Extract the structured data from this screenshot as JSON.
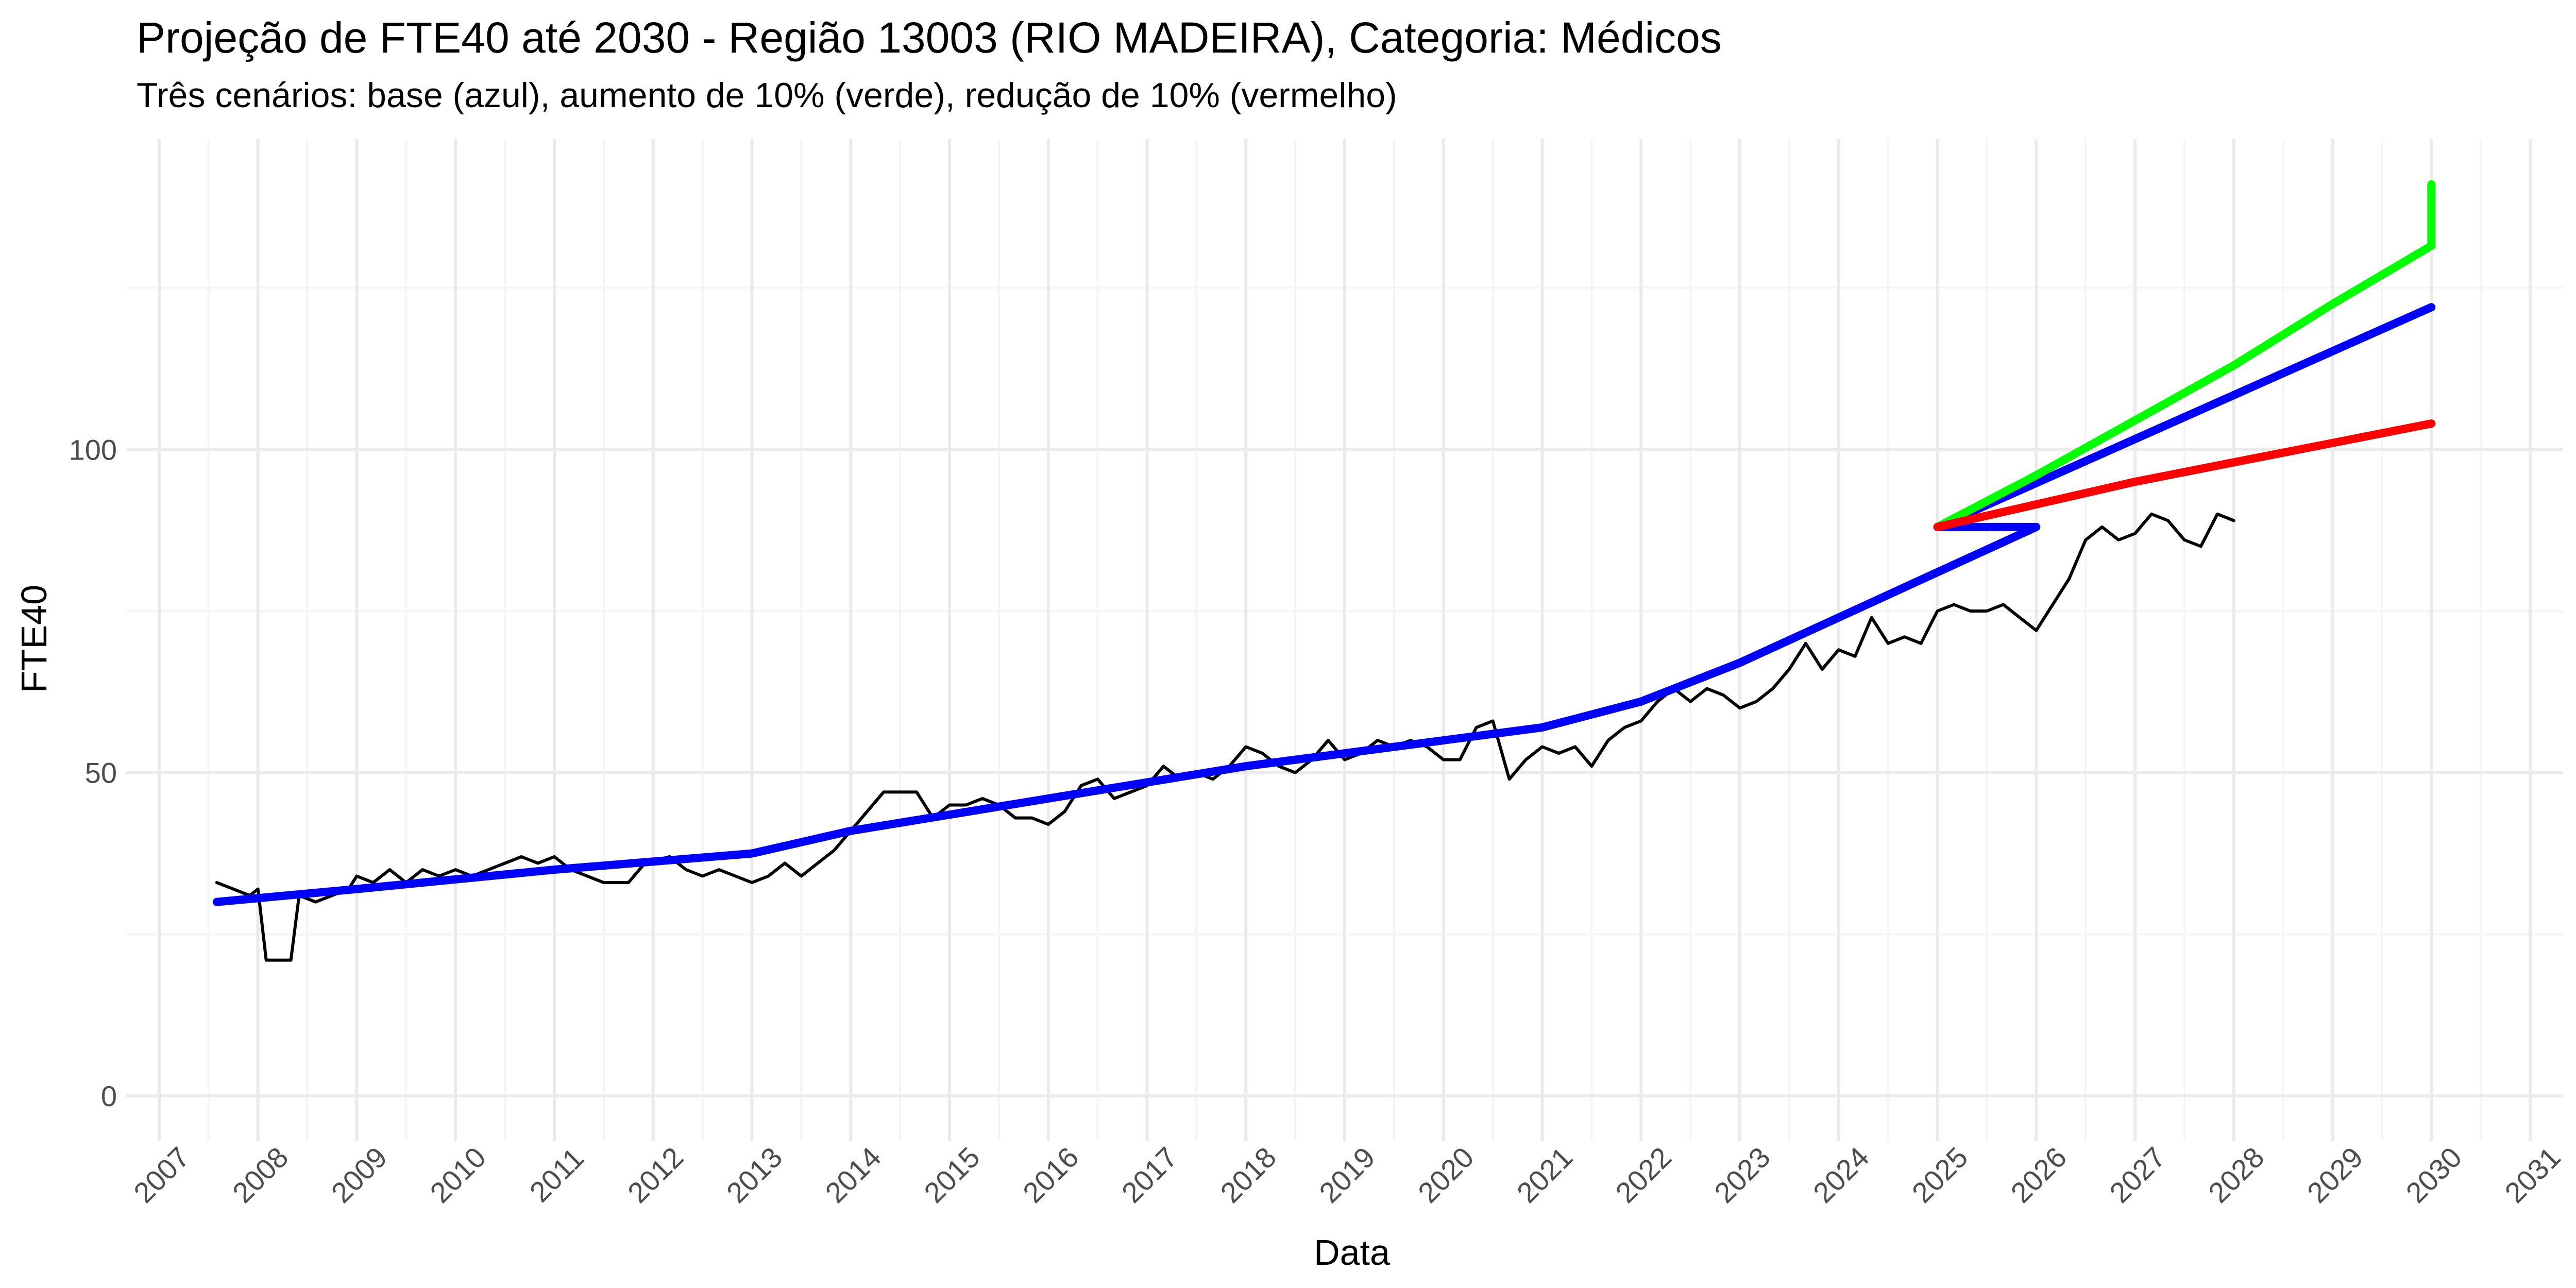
{
  "chart_data": {
    "type": "line",
    "title": "Projeção de FTE40 até 2030 - Região 13003 (RIO MADEIRA), Categoria: Médicos",
    "subtitle": "Três cenários: base (azul), aumento de 10% (verde), redução de 10% (vermelho)",
    "xlabel": "Data",
    "ylabel": "FTE40",
    "x_type": "date",
    "xlim": [
      "2006-09-01",
      "2031-05-01"
    ],
    "ylim": [
      -7,
      148
    ],
    "y_ticks": [
      0,
      50,
      100
    ],
    "x_tick_labels": [
      "2007",
      "2008",
      "2009",
      "2010",
      "2011",
      "2012",
      "2013",
      "2014",
      "2015",
      "2016",
      "2017",
      "2018",
      "2019",
      "2020",
      "2021",
      "2022",
      "2023",
      "2024",
      "2025",
      "2026",
      "2027",
      "2028",
      "2029",
      "2030",
      "2031"
    ],
    "grid": true,
    "colors": {
      "observed": "#000000",
      "base": "#0000ff",
      "increase": "#00ff00",
      "decrease": "#ff0000",
      "grid_major": "#ebebeb",
      "grid_minor": "#f5f5f5"
    },
    "series": [
      {
        "key": "observed",
        "points": [
          [
            "2007-08",
            33
          ],
          [
            "2007-10",
            32
          ],
          [
            "2007-12",
            31
          ],
          [
            "2008-01",
            32
          ],
          [
            "2008-02",
            21
          ],
          [
            "2008-05",
            21
          ],
          [
            "2008-06",
            31
          ],
          [
            "2008-08",
            30
          ],
          [
            "2008-10",
            31
          ],
          [
            "2008-12",
            32
          ],
          [
            "2009-01",
            34
          ],
          [
            "2009-03",
            33
          ],
          [
            "2009-05",
            35
          ],
          [
            "2009-07",
            33
          ],
          [
            "2009-09",
            35
          ],
          [
            "2009-11",
            34
          ],
          [
            "2010-01",
            35
          ],
          [
            "2010-03",
            34
          ],
          [
            "2010-05",
            35
          ],
          [
            "2010-07",
            36
          ],
          [
            "2010-09",
            37
          ],
          [
            "2010-11",
            36
          ],
          [
            "2011-01",
            37
          ],
          [
            "2011-03",
            35
          ],
          [
            "2011-05",
            34
          ],
          [
            "2011-07",
            33
          ],
          [
            "2011-10",
            33
          ],
          [
            "2011-12",
            36
          ],
          [
            "2012-03",
            37
          ],
          [
            "2012-05",
            35
          ],
          [
            "2012-07",
            34
          ],
          [
            "2012-09",
            35
          ],
          [
            "2012-11",
            34
          ],
          [
            "2013-01",
            33
          ],
          [
            "2013-03",
            34
          ],
          [
            "2013-05",
            36
          ],
          [
            "2013-07",
            34
          ],
          [
            "2013-09",
            36
          ],
          [
            "2013-11",
            38
          ],
          [
            "2014-01",
            41
          ],
          [
            "2014-03",
            44
          ],
          [
            "2014-05",
            47
          ],
          [
            "2014-07",
            47
          ],
          [
            "2014-09",
            47
          ],
          [
            "2014-11",
            43
          ],
          [
            "2015-01",
            45
          ],
          [
            "2015-03",
            45
          ],
          [
            "2015-05",
            46
          ],
          [
            "2015-07",
            45
          ],
          [
            "2015-09",
            43
          ],
          [
            "2015-11",
            43
          ],
          [
            "2016-01",
            42
          ],
          [
            "2016-03",
            44
          ],
          [
            "2016-05",
            48
          ],
          [
            "2016-07",
            49
          ],
          [
            "2016-09",
            46
          ],
          [
            "2016-11",
            47
          ],
          [
            "2017-01",
            48
          ],
          [
            "2017-03",
            51
          ],
          [
            "2017-05",
            49
          ],
          [
            "2017-07",
            50
          ],
          [
            "2017-09",
            49
          ],
          [
            "2017-11",
            51
          ],
          [
            "2018-01",
            54
          ],
          [
            "2018-03",
            53
          ],
          [
            "2018-05",
            51
          ],
          [
            "2018-07",
            50
          ],
          [
            "2018-09",
            52
          ],
          [
            "2018-11",
            55
          ],
          [
            "2019-01",
            52
          ],
          [
            "2019-03",
            53
          ],
          [
            "2019-05",
            55
          ],
          [
            "2019-07",
            54
          ],
          [
            "2019-09",
            55
          ],
          [
            "2019-11",
            54
          ],
          [
            "2020-01",
            52
          ],
          [
            "2020-03",
            52
          ],
          [
            "2020-05",
            57
          ],
          [
            "2020-07",
            58
          ],
          [
            "2020-09",
            49
          ],
          [
            "2020-11",
            52
          ],
          [
            "2021-01",
            54
          ],
          [
            "2021-03",
            53
          ],
          [
            "2021-05",
            54
          ],
          [
            "2021-07",
            51
          ],
          [
            "2021-09",
            55
          ],
          [
            "2021-11",
            57
          ],
          [
            "2022-01",
            58
          ],
          [
            "2022-03",
            61
          ],
          [
            "2022-05",
            63
          ],
          [
            "2022-07",
            61
          ],
          [
            "2022-09",
            63
          ],
          [
            "2022-11",
            62
          ],
          [
            "2023-01",
            60
          ],
          [
            "2023-03",
            61
          ],
          [
            "2023-05",
            63
          ],
          [
            "2023-07",
            66
          ],
          [
            "2023-09",
            70
          ],
          [
            "2023-11",
            66
          ],
          [
            "2024-01",
            69
          ],
          [
            "2024-03",
            68
          ],
          [
            "2024-05",
            74
          ],
          [
            "2024-07",
            70
          ],
          [
            "2024-09",
            71
          ],
          [
            "2024-11",
            70
          ],
          [
            "2025-01",
            75
          ],
          [
            "2025-03",
            76
          ],
          [
            "2025-05",
            75
          ],
          [
            "2025-07",
            75
          ],
          [
            "2025-09",
            76
          ],
          [
            "2025-11",
            74
          ],
          [
            "2026-01",
            72
          ],
          [
            "2026-03",
            76
          ],
          [
            "2026-05",
            80
          ],
          [
            "2026-07",
            86
          ],
          [
            "2026-09",
            88
          ],
          [
            "2026-11",
            86
          ],
          [
            "2027-01",
            87
          ],
          [
            "2027-03",
            90
          ],
          [
            "2027-05",
            89
          ],
          [
            "2027-07",
            86
          ],
          [
            "2027-09",
            85
          ],
          [
            "2027-11",
            90
          ],
          [
            "2028-01",
            89
          ]
        ]
      },
      {
        "key": "base",
        "points": [
          [
            "2007-08",
            30
          ],
          [
            "2009-01",
            32
          ],
          [
            "2011-01",
            35
          ],
          [
            "2013-01",
            37.5
          ],
          [
            "2014-01",
            41
          ],
          [
            "2016-01",
            46
          ],
          [
            "2018-01",
            51
          ],
          [
            "2020-01",
            55
          ],
          [
            "2021-01",
            57
          ],
          [
            "2022-01",
            61
          ],
          [
            "2023-01",
            67
          ],
          [
            "2024-01",
            74
          ],
          [
            "2025-01",
            81
          ],
          [
            "2026-01",
            88
          ],
          [
            "2025-01",
            88
          ],
          [
            "2030-01",
            122
          ]
        ]
      },
      {
        "key": "increase",
        "points": [
          [
            "2025-01",
            88
          ],
          [
            "2026-01",
            96
          ],
          [
            "2027-01",
            104.5
          ],
          [
            "2028-01",
            113
          ],
          [
            "2029-01",
            122.5
          ],
          [
            "2030-01",
            131.5
          ],
          [
            "2030-01",
            141
          ]
        ]
      },
      {
        "key": "decrease",
        "points": [
          [
            "2025-01",
            88
          ],
          [
            "2026-01",
            91.5
          ],
          [
            "2027-01",
            95
          ],
          [
            "2028-01",
            98
          ],
          [
            "2029-01",
            101
          ],
          [
            "2030-01",
            104
          ]
        ]
      }
    ]
  }
}
